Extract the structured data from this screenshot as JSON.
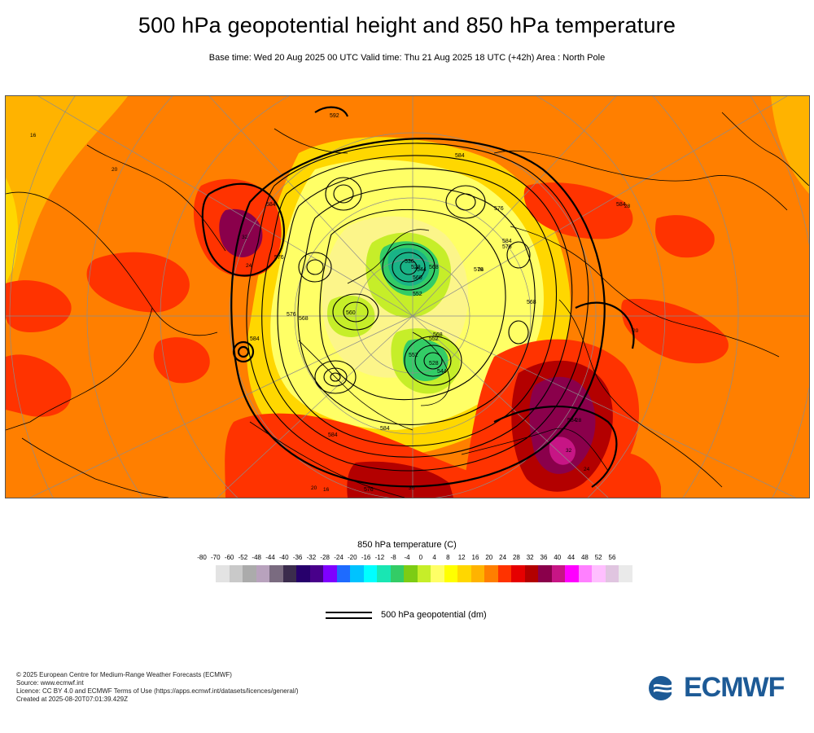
{
  "title": "500 hPa geopotential height and 850 hPa temperature",
  "subtitle": "Base time: Wed 20 Aug 2025 00 UTC Valid time: Thu 21 Aug 2025 18 UTC (+42h) Area : North Pole",
  "map": {
    "contour_labels": [
      "592",
      "584",
      "584",
      "584",
      "584",
      "584",
      "584",
      "584",
      "584",
      "576",
      "576",
      "576",
      "576",
      "576",
      "576",
      "568",
      "568",
      "568",
      "568",
      "560",
      "560",
      "552",
      "552",
      "552",
      "544",
      "544",
      "536",
      "528",
      "528"
    ],
    "temp_labels": [
      "16",
      "16",
      "20",
      "20",
      "20",
      "24",
      "24",
      "24",
      "28",
      "28",
      "32",
      "32",
      "36"
    ],
    "colors": {
      "background": "#ff7f00",
      "contour": "#000000",
      "coast": "#000000"
    }
  },
  "legend": {
    "title": "850 hPa temperature (C)",
    "ticks": [
      "-80",
      "-70",
      "-60",
      "-52",
      "-48",
      "-44",
      "-40",
      "-36",
      "-32",
      "-28",
      "-24",
      "-20",
      "-16",
      "-12",
      "-8",
      "-4",
      "0",
      "4",
      "8",
      "12",
      "16",
      "20",
      "24",
      "28",
      "32",
      "36",
      "40",
      "44",
      "48",
      "52",
      "56"
    ],
    "colors": [
      "#e3e3e3",
      "#c9c9c9",
      "#ababab",
      "#b8a2bd",
      "#7a6b80",
      "#3b2c4d",
      "#27006c",
      "#48008a",
      "#7f00ff",
      "#1e6bff",
      "#00c3ff",
      "#00ffff",
      "#19e6b3",
      "#33cc66",
      "#7dcc14",
      "#c6ee29",
      "#ffff66",
      "#ffff00",
      "#ffd700",
      "#ffb300",
      "#ff7f00",
      "#ff3300",
      "#e60000",
      "#b30000",
      "#8a004b",
      "#c71585",
      "#ff00ff",
      "#ff80ff",
      "#ffbfff",
      "#e0c5e0",
      "#eaeaea"
    ]
  },
  "contour_key": {
    "label": "500 hPa geopotential (dm)"
  },
  "footer": {
    "copyright": "© 2025 European Centre for Medium-Range Weather Forecasts (ECMWF)",
    "source": "Source: www.ecmwf.int",
    "licence": "Licence: CC BY 4.0 and ECMWF Terms of Use (https://apps.ecmwf.int/datasets/licences/general/)",
    "created": "Created at 2025-08-20T07:01:39.429Z"
  },
  "logo": {
    "text": "ECMWF",
    "color": "#1d5a96"
  }
}
